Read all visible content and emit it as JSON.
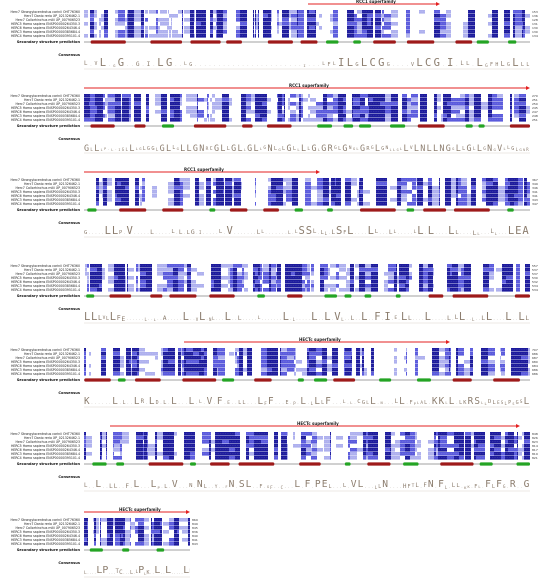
{
  "sequence_names": [
    "Herc7 Strongylocentrotus carinii OHT76360",
    "Herc7 Danio rerio XP_021326462.1",
    "Herc7 Callorhinchus milii XP_007906523",
    "HERC5 Homo sapiens ENSP00000264350.3",
    "HERC6 Homo sapiens ENSP00000264346.4",
    "HERC3 Homo sapiens ENSP00000385684.4",
    "HERC4 Homo sapiens ENSP00000395101.4"
  ],
  "ssp_label": "Secondary structure prediction",
  "consensus_label": "Consensus",
  "colors": {
    "dark_blue": "#1c1a9c",
    "mid_blue": "#5a5adc",
    "light_blue": "#aeb0ee",
    "helix": "#9e1a1a",
    "strand": "#24a424",
    "superfamily_arrow": "#e32020",
    "consensus_text": "#8c7d6e"
  },
  "blocks": [
    {
      "end_numbers": [
        "153",
        "136",
        "128",
        "131",
        "130",
        "130",
        "134"
      ],
      "superfamily": "RCC1 superfamily",
      "consensus": "L_VL_GG__G_I_LG__LG_______________________I___LFLILGLCGG____VLCG_I_LL_LGFHLGLLL"
    },
    {
      "end_numbers": [
        "270",
        "251",
        "250",
        "245",
        "247",
        "248",
        "251"
      ],
      "superfamily": "RCC1 superfamily",
      "consensus": "GLLLP_L_IGLLLGLGGLGLLGLLGNRCGLLGLLGLLGNLGLGLLLLGLGRGLGNGLGRGLGNLLGLLVLNLLNGGLLGLLGNGVLLGLGNR"
    },
    {
      "end_numbers": [
        "367",
        "349",
        "346",
        "341",
        "341",
        "343",
        "347"
      ],
      "superfamily": "RCC1 superfamily",
      "consensus": "G_____LLP_V_____L_____L_L_LG_I_____L_V_______LL_______L_LSSL_LL_LSFL____LL___LL_____LL_L____LL____LL___LL___LEA"
    },
    {
      "end_numbers": [
        "557",
        "537",
        "537",
        "530",
        "532",
        "534",
        "534"
      ],
      "superfamily": "",
      "consensus": "LLLVLLFE______L__L__A_____L__VL_NL___L__L_____L_______L_L_____L__L_VL__L__L__F_I_E_LL____L_____L_LL__L__LL____L__LL"
    },
    {
      "end_numbers": [
        "707",
        "686",
        "687",
        "680",
        "684",
        "686",
        "686"
      ],
      "superfamily": "HECTc superfamily",
      "consensus": "K______L_L__LR_LD_L_L___L_L_V_F_E__LL___LFF___E_P_L_LLLF___L_L_CGLL_N___LL_FPLAL_KKLL_LKRSLLDLESLPSGSL"
    },
    {
      "end_numbers": [
        "848",
        "826",
        "823",
        "814",
        "817",
        "819",
        "821"
      ],
      "superfamily": "HECTc superfamily",
      "consensus": "L__L__LL__F_L___LP_L_V___N_NL__Y__FN_SL__F_GF__C___L_F_PEL___L_VL___LLN____HFTL_FN_FL_LL_KK_FL_FLFG_R__G"
    },
    {
      "end_numbers": [
        "869",
        "849",
        "845",
        "836",
        "840",
        "841",
        "843"
      ],
      "superfamily": "HECTc superfamily",
      "consensus": "L____LP___TC___L_LPLK__L__L_____LF"
    }
  ]
}
